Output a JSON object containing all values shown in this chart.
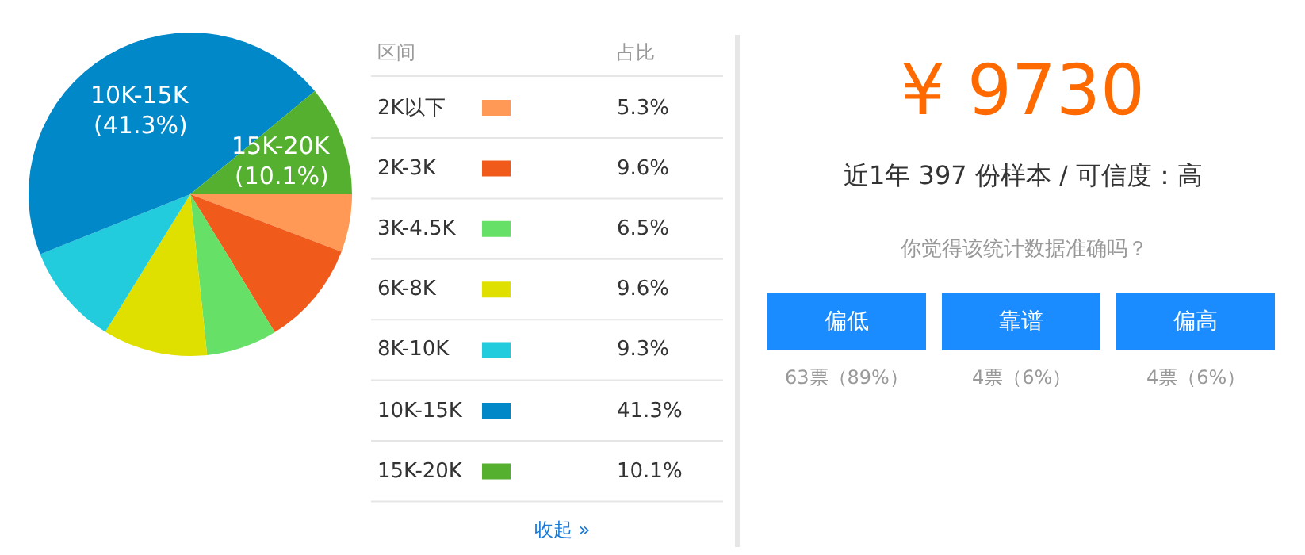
{
  "chart_data": [
    {
      "type": "pie",
      "categories": [
        "2K以下",
        "2K-3K",
        "3K-4.5K",
        "6K-8K",
        "8K-10K",
        "10K-15K",
        "15K-20K"
      ],
      "values": [
        5.3,
        9.6,
        6.5,
        9.6,
        9.3,
        41.3,
        10.1
      ],
      "colors": [
        "#ff9955",
        "#f05a1a",
        "#66e066",
        "#e0e000",
        "#22ccdd",
        "#0088c8",
        "#55b030"
      ],
      "legend": "right",
      "value_labels": [
        "5.3%",
        "9.6%",
        "6.5%",
        "9.6%",
        "9.3%",
        "41.3%",
        "10.1%"
      ],
      "annotations": [
        "区间",
        "占比",
        "收起 »",
        {
          "text": "10K-15K",
          "x": "10K-15K"
        },
        {
          "text": "(41.3%)",
          "x": "10K-15K"
        },
        {
          "text": "15K-20K",
          "x": "15K-20K"
        },
        {
          "text": "(10.1%)",
          "x": "15K-20K"
        }
      ]
    },
    {
      "type": "other",
      "annotations": [
        "¥ 9730",
        "近1年 397 份样本 / 可信度：高",
        "你觉得该统计数据准确吗？",
        "偏低",
        "靠谱",
        "偏高",
        "63票（89%）",
        "4票（6%）",
        "4票（6%）"
      ]
    }
  ]
}
